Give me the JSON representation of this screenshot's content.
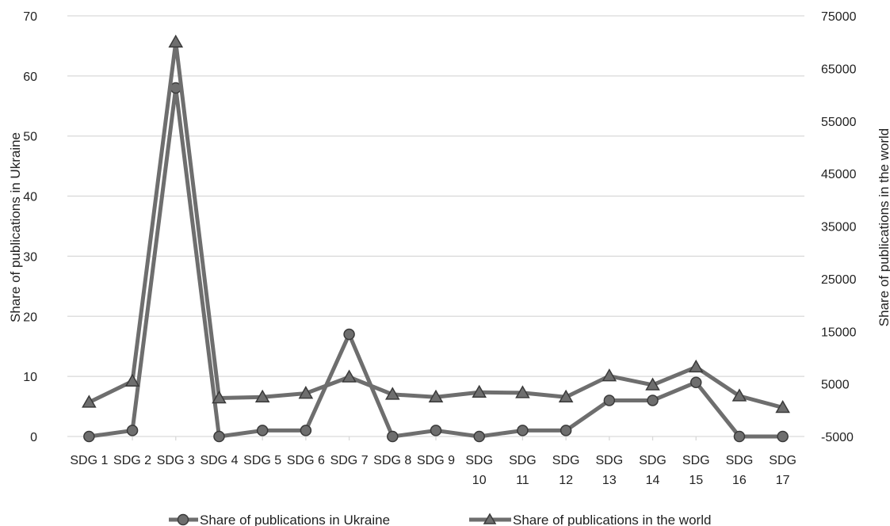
{
  "chart_data": {
    "type": "line",
    "categories": [
      [
        "SDG 1"
      ],
      [
        "SDG 2"
      ],
      [
        "SDG 3"
      ],
      [
        "SDG 4"
      ],
      [
        "SDG 5"
      ],
      [
        "SDG 6"
      ],
      [
        "SDG 7"
      ],
      [
        "SDG 8"
      ],
      [
        "SDG 9"
      ],
      [
        "SDG",
        "10"
      ],
      [
        "SDG",
        "11"
      ],
      [
        "SDG",
        "12"
      ],
      [
        "SDG",
        "13"
      ],
      [
        "SDG",
        "14"
      ],
      [
        "SDG",
        "15"
      ],
      [
        "SDG",
        "16"
      ],
      [
        "SDG",
        "17"
      ]
    ],
    "ylabel_left": "Share of publications in Ukraine",
    "ylabel_right": "Share of publications in the world",
    "ylim_left": [
      0,
      70
    ],
    "yticks_left": [
      "0",
      "10",
      "20",
      "30",
      "40",
      "50",
      "60",
      "70"
    ],
    "ylim_right": [
      -5000,
      75000
    ],
    "yticks_right": [
      "-5000",
      "5000",
      "15000",
      "25000",
      "35000",
      "45000",
      "55000",
      "65000",
      "75000"
    ],
    "grid": true,
    "legend_position": "bottom",
    "series": [
      {
        "name": "Share of publications in Ukraine",
        "axis": "left",
        "marker": "circle",
        "color": "#6e6e6e",
        "values": [
          0,
          1,
          58,
          0,
          1,
          1,
          17,
          0,
          1,
          0,
          1,
          1,
          6,
          6,
          9,
          0,
          0
        ]
      },
      {
        "name": "Share of publications in the world",
        "axis": "right",
        "marker": "triangle",
        "color": "#6e6e6e",
        "values": [
          1500,
          5500,
          70000,
          2300,
          2500,
          3200,
          6300,
          3000,
          2500,
          3400,
          3300,
          2500,
          6500,
          4800,
          8200,
          2700,
          500
        ]
      }
    ]
  }
}
